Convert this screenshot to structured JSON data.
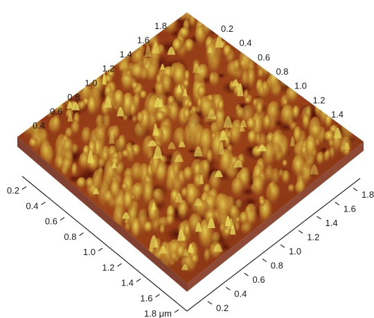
{
  "chart_data": {
    "type": "surface",
    "axes": {
      "front_left": {
        "tick_labels": [
          "0.2",
          "0.4",
          "0.6",
          "0.8",
          "1.0",
          "1.2",
          "1.4",
          "1.6",
          "1.8 μm"
        ],
        "range": [
          0,
          2
        ],
        "unit": "μm"
      },
      "front_right": {
        "tick_labels": [
          "0.2",
          "0.4",
          "0.6",
          "0.8",
          "1.0",
          "1.2",
          "1.4",
          "1.6",
          "1.8"
        ],
        "range": [
          0,
          2
        ]
      },
      "back_left": {
        "tick_labels": [
          "0.4",
          "0.6",
          "0.8",
          "1.0",
          "1.2",
          "1.4",
          "1.6",
          "1.8"
        ]
      },
      "back_right": {
        "tick_labels": [
          "0.2",
          "0.4",
          "0.6",
          "0.8",
          "1.0",
          "1.2",
          "1.4"
        ]
      }
    },
    "colors": {
      "low": "#4a0c08",
      "mid_low": "#7a2410",
      "mid": "#a34c1a",
      "mid_high": "#c48a2a",
      "high": "#e8dc5c"
    },
    "grid": false,
    "legend": "none"
  }
}
